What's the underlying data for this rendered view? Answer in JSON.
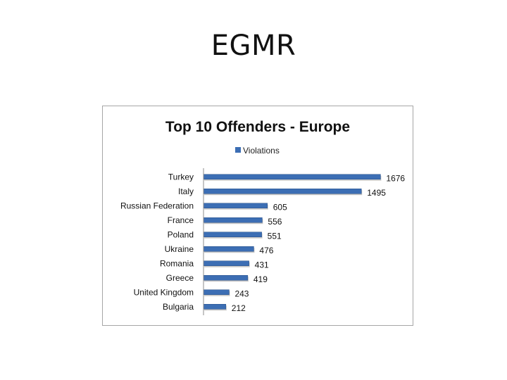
{
  "slide": {
    "title": "EGMR"
  },
  "colors": {
    "bar": "#3c6eb4",
    "bar_dark": "#274f86",
    "axis": "#8c8c8c"
  },
  "chart_data": {
    "type": "bar",
    "orientation": "horizontal",
    "title": "Top 10 Offenders - Europe",
    "legend": {
      "position": "top",
      "entries": [
        "Violations"
      ]
    },
    "categories": [
      "Turkey",
      "Italy",
      "Russian Federation",
      "France",
      "Poland",
      "Ukraine",
      "Romania",
      "Greece",
      "United Kingdom",
      "Bulgaria"
    ],
    "series": [
      {
        "name": "Violations",
        "values": [
          1676,
          1495,
          605,
          556,
          551,
          476,
          431,
          419,
          243,
          212
        ]
      }
    ],
    "xlim": [
      0,
      1800
    ],
    "grid": false
  }
}
